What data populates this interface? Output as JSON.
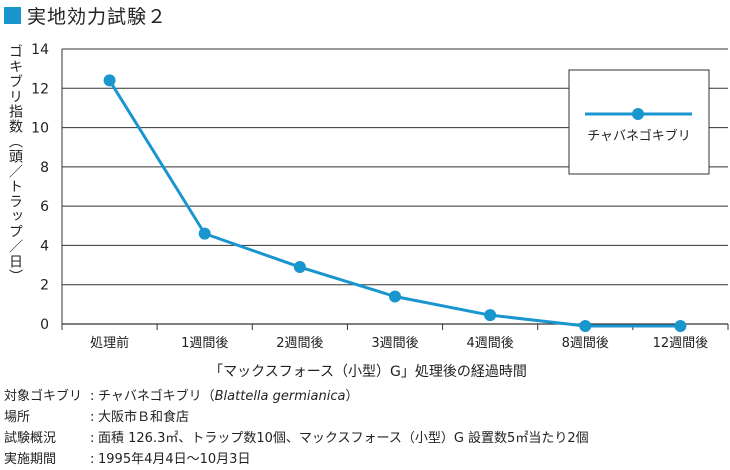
{
  "title": "実地効力試験２",
  "colors": {
    "accent": "#1a96cf",
    "grid": "#333333",
    "text": "#222222"
  },
  "chart_data": {
    "type": "line",
    "title": "実地効力試験２",
    "ylabel": "ゴキブリ指数（頭／トラップ／日）",
    "xlabel": "「マックスフォース（小型）G」処理後の経過時間",
    "ylim": [
      0,
      14
    ],
    "yticks": [
      0,
      2,
      4,
      6,
      8,
      10,
      12,
      14
    ],
    "categories": [
      "処理前",
      "1週間後",
      "2週間後",
      "3週間後",
      "4週間後",
      "8週間後",
      "12週間後"
    ],
    "series": [
      {
        "name": "チャバネゴキブリ",
        "values": [
          12.4,
          4.6,
          2.9,
          1.4,
          0.45,
          -0.1,
          -0.1
        ]
      }
    ],
    "legend": {
      "position": "top-right",
      "label": "チャバネゴキブリ"
    },
    "grid": true
  },
  "notes": [
    {
      "key": "対象ゴキブリ",
      "value": "チャバネゴキブリ（",
      "italic": "Blattella germianica",
      "tail": "）"
    },
    {
      "key": "場所",
      "value": "大阪市Ｂ和食店",
      "italic": "",
      "tail": ""
    },
    {
      "key": "試験概況",
      "value": "面積 126.3㎡、トラップ数10個、マックスフォース（小型）G 設置数5㎡当たり2個",
      "italic": "",
      "tail": ""
    },
    {
      "key": "実施期間",
      "value": "1995年4月4日〜10月3日",
      "italic": "",
      "tail": ""
    }
  ],
  "colon": ":"
}
